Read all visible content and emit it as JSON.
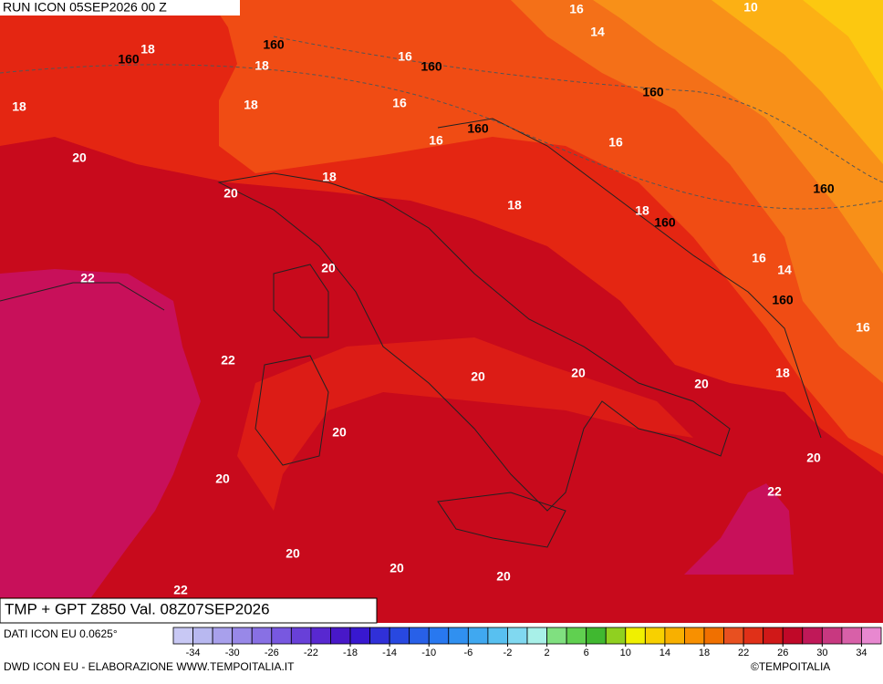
{
  "header": {
    "run": "RUN ICON 05SEP2026 00 Z"
  },
  "map": {
    "isotherm_labels": [
      18,
      18,
      16,
      10,
      14,
      16,
      18,
      18,
      16,
      16,
      16,
      20,
      18,
      20,
      18,
      18,
      20,
      16,
      14,
      22,
      16,
      22,
      20,
      20,
      18,
      20,
      20,
      20,
      20,
      22,
      20,
      20,
      20,
      22
    ],
    "geopotential_labels": [
      160,
      160,
      160,
      160,
      160,
      160,
      160,
      160
    ]
  },
  "footer": {
    "title": "TMP + GPT Z850 Val. 08Z07SEP2026",
    "source": "DATI ICON EU 0.0625°",
    "credit": "DWD ICON EU - ELABORAZIONE WWW.TEMPOITALIA.IT",
    "copyright": "©TEMPOITALIA"
  },
  "colorbar": {
    "min": -36,
    "step": 2,
    "colors": [
      "#c8c8f4",
      "#b8b8f0",
      "#a8a0ec",
      "#9888e8",
      "#8870e4",
      "#7858e0",
      "#6840d8",
      "#5828d0",
      "#4818c8",
      "#3818d0",
      "#3030d8",
      "#2848e0",
      "#2860e8",
      "#2878f0",
      "#3090f0",
      "#40a8f0",
      "#58c0f0",
      "#80d8f0",
      "#a8f0e8",
      "#80e080",
      "#60d050",
      "#40b830",
      "#90d020",
      "#f0f000",
      "#f8d000",
      "#f8b000",
      "#f89000",
      "#f07000",
      "#e85020",
      "#e03018",
      "#d01818",
      "#c00828",
      "#c01858",
      "#c83880",
      "#d860a8",
      "#e888d0"
    ],
    "ticks": [
      -34,
      -30,
      -26,
      -22,
      -18,
      -14,
      -10,
      -6,
      -2,
      2,
      6,
      10,
      14,
      18,
      22,
      26,
      30,
      34
    ]
  }
}
